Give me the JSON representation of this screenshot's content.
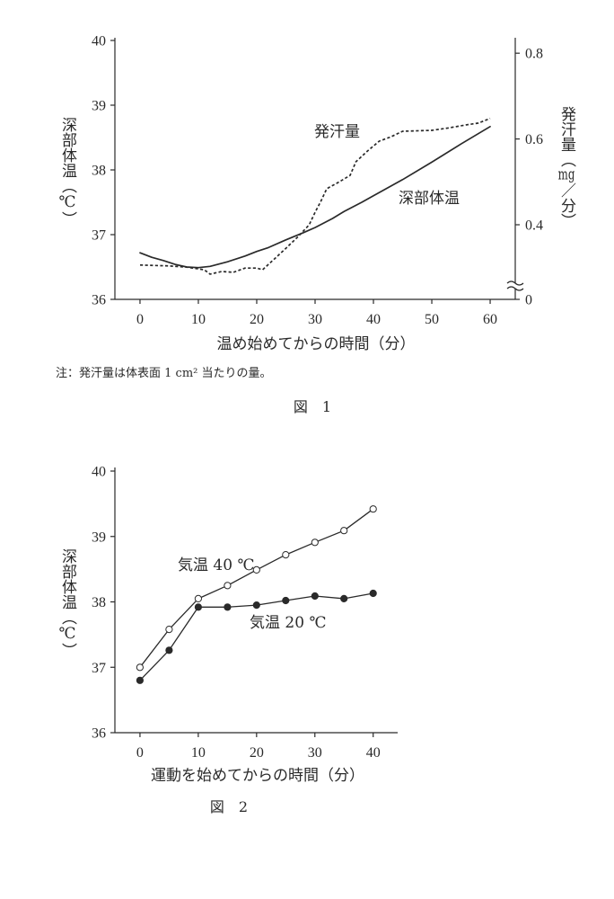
{
  "figure1": {
    "note": "注：発汗量は体表面 1 cm² 当たりの量。",
    "caption": "図　1"
  },
  "figure2": {
    "caption": "図　2"
  },
  "chart_data": [
    {
      "type": "line",
      "xlabel": "温め始めてからの時間（分）",
      "ylabel": "深部体温（℃）",
      "y2label": "発汗量（mg／分）",
      "xlim": [
        -4.3,
        64.3
      ],
      "ylim": [
        36,
        40
      ],
      "y2lim": [
        0.226,
        0.836
      ],
      "y2_axis_break": true,
      "xticks": [
        0,
        10,
        20,
        30,
        40,
        50,
        60
      ],
      "yticks": [
        36,
        37,
        38,
        39,
        40
      ],
      "y2ticks": [
        0,
        0.4,
        0.6,
        0.8
      ],
      "grid": false,
      "series": [
        {
          "name": "深部体温",
          "axis": "left",
          "line_style": "solid",
          "marker": "none",
          "x": [
            0,
            2,
            4,
            6,
            8,
            10,
            12,
            15,
            18,
            20,
            22,
            25,
            28,
            30,
            33,
            35,
            38,
            40,
            45,
            50,
            55,
            60
          ],
          "y": [
            36.72,
            36.65,
            36.6,
            36.54,
            36.5,
            36.49,
            36.51,
            36.58,
            36.67,
            36.74,
            36.8,
            36.92,
            37.03,
            37.11,
            37.25,
            37.36,
            37.5,
            37.6,
            37.85,
            38.12,
            38.4,
            38.67
          ]
        },
        {
          "name": "発汗量",
          "axis": "right",
          "line_style": "dashed",
          "marker": "none",
          "x": [
            0,
            5,
            8,
            10,
            11,
            12,
            14,
            16,
            18,
            20,
            21,
            23,
            25,
            27,
            29,
            30,
            31,
            32,
            34,
            36,
            37,
            39,
            41,
            43,
            45,
            50,
            53,
            56,
            58,
            60
          ],
          "y": [
            0.306,
            0.304,
            0.301,
            0.297,
            0.295,
            0.285,
            0.291,
            0.289,
            0.299,
            0.299,
            0.295,
            0.32,
            0.345,
            0.371,
            0.4,
            0.429,
            0.455,
            0.484,
            0.499,
            0.515,
            0.547,
            0.572,
            0.595,
            0.605,
            0.618,
            0.62,
            0.626,
            0.633,
            0.637,
            0.648
          ]
        }
      ]
    },
    {
      "type": "line",
      "xlabel": "運動を始めてからの時間（分）",
      "ylabel": "深部体温（℃）",
      "xlim": [
        -4.3,
        44.2
      ],
      "ylim": [
        36,
        40
      ],
      "xticks": [
        0,
        10,
        20,
        30,
        40
      ],
      "yticks": [
        36,
        37,
        38,
        39,
        40
      ],
      "grid": false,
      "series": [
        {
          "name": "気温 40 ℃",
          "axis": "left",
          "line_style": "solid",
          "marker": "open-circle",
          "x": [
            0,
            5,
            10,
            15,
            20,
            25,
            30,
            35,
            40
          ],
          "y": [
            37.0,
            37.58,
            38.05,
            38.25,
            38.49,
            38.72,
            38.91,
            39.09,
            39.42
          ]
        },
        {
          "name": "気温 20 ℃",
          "axis": "left",
          "line_style": "solid",
          "marker": "filled-circle",
          "x": [
            0,
            5,
            10,
            15,
            20,
            25,
            30,
            35,
            40
          ],
          "y": [
            36.8,
            37.26,
            37.92,
            37.92,
            37.95,
            38.02,
            38.09,
            38.05,
            38.13
          ]
        }
      ]
    }
  ]
}
